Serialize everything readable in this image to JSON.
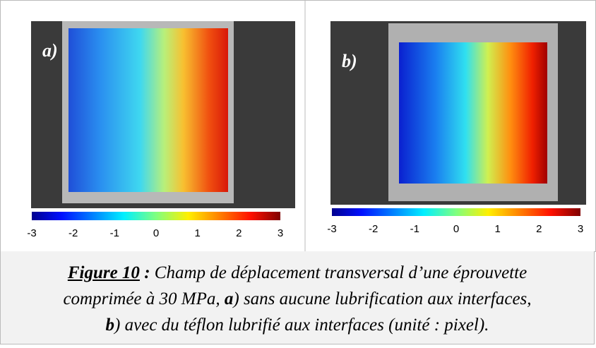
{
  "panels": [
    {
      "label": "a)",
      "colorbar": {
        "ticks": [
          -3,
          -2,
          -1,
          0,
          1,
          2,
          3
        ]
      }
    },
    {
      "label": "b)",
      "colorbar": {
        "ticks": [
          -3,
          -2,
          -1,
          0,
          1,
          2,
          3
        ]
      }
    }
  ],
  "caption": {
    "label": "Figure 10",
    "separator": " :",
    "parts": [
      " Champ de déplacement transversal d’une éprouvette",
      "comprimée à 30 MPa, ",
      "a",
      ") sans aucune lubrification aux interfaces,",
      "b",
      ") avec du téflon lubrifié aux interfaces (unité : pixel)."
    ]
  }
}
